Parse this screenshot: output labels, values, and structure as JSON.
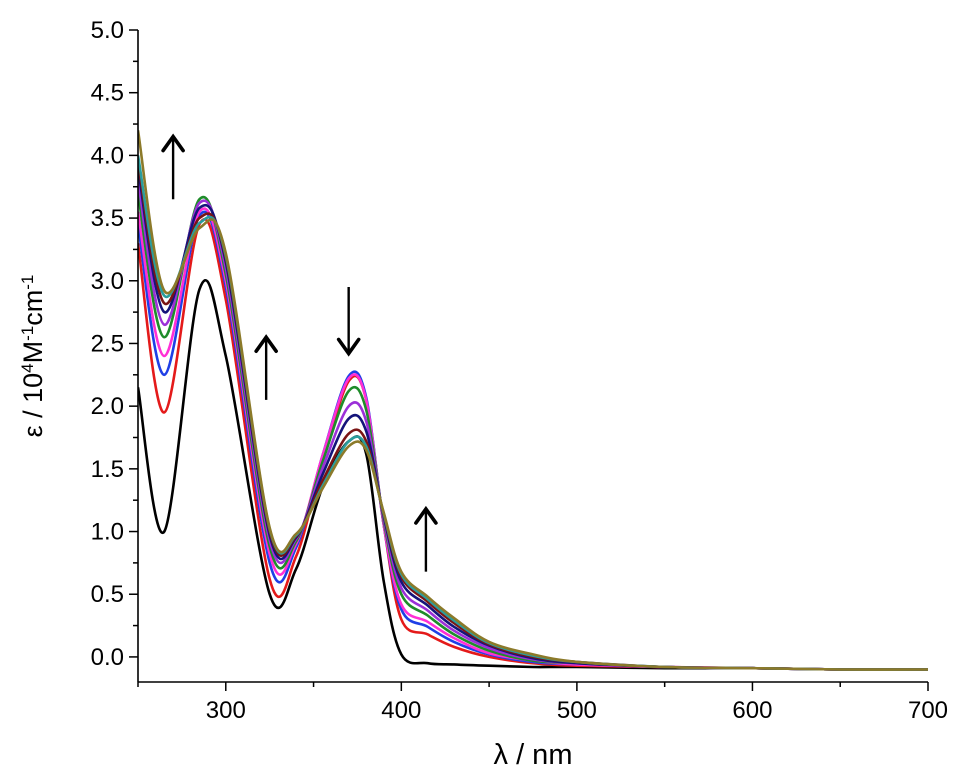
{
  "chart_data": {
    "type": "line",
    "xlabel": "λ / nm",
    "ylabel": {
      "prefix": "ε / 10",
      "sup1": "4",
      "mid": "M",
      "sup2": "-1",
      "mid2": "cm",
      "sup3": "-1"
    },
    "xlim": [
      250,
      700
    ],
    "ylim": [
      -0.2,
      5.0
    ],
    "xticks": [
      300,
      400,
      500,
      600,
      700
    ],
    "yticks": [
      0.0,
      0.5,
      1.0,
      1.5,
      2.0,
      2.5,
      3.0,
      3.5,
      4.0,
      4.5,
      5.0
    ],
    "grid": false,
    "legend": "none",
    "annotations": [
      {
        "type": "arrow",
        "direction": "up",
        "x": 270,
        "y_from": 3.65,
        "y_to": 4.15
      },
      {
        "type": "arrow",
        "direction": "up",
        "x": 323,
        "y_from": 2.05,
        "y_to": 2.55
      },
      {
        "type": "arrow",
        "direction": "down",
        "x": 370,
        "y_from": 2.95,
        "y_to": 2.42
      },
      {
        "type": "arrow",
        "direction": "up",
        "x": 414,
        "y_from": 0.68,
        "y_to": 1.18
      }
    ],
    "x": [
      250,
      265,
      285,
      300,
      325,
      340,
      355,
      370,
      380,
      390,
      400,
      415,
      430,
      450,
      475,
      500,
      550,
      600,
      650,
      700
    ],
    "series": [
      {
        "color": "#000000",
        "values": [
          2.15,
          1.0,
          2.93,
          2.4,
          0.5,
          0.7,
          1.35,
          1.72,
          1.62,
          0.6,
          0.02,
          -0.05,
          -0.06,
          -0.07,
          -0.08,
          -0.08,
          -0.09,
          -0.09,
          -0.1,
          -0.1
        ]
      },
      {
        "color": "#e41a1a",
        "values": [
          3.3,
          1.95,
          3.45,
          2.85,
          0.62,
          0.8,
          1.55,
          2.2,
          2.05,
          1.05,
          0.3,
          0.18,
          0.08,
          0.0,
          -0.05,
          -0.07,
          -0.08,
          -0.09,
          -0.1,
          -0.1
        ]
      },
      {
        "color": "#1f3fe6",
        "values": [
          3.45,
          2.25,
          3.52,
          2.95,
          0.75,
          0.87,
          1.6,
          2.24,
          2.07,
          1.05,
          0.38,
          0.24,
          0.12,
          0.02,
          -0.04,
          -0.06,
          -0.08,
          -0.09,
          -0.1,
          -0.1
        ]
      },
      {
        "color": "#ff2fd6",
        "values": [
          3.55,
          2.4,
          3.55,
          3.0,
          0.82,
          0.9,
          1.6,
          2.22,
          2.05,
          1.05,
          0.42,
          0.28,
          0.15,
          0.03,
          -0.03,
          -0.06,
          -0.08,
          -0.09,
          -0.1,
          -0.1
        ]
      },
      {
        "color": "#1f8c2a",
        "values": [
          3.7,
          2.55,
          3.65,
          3.05,
          0.88,
          0.92,
          1.55,
          2.12,
          1.97,
          1.08,
          0.5,
          0.33,
          0.18,
          0.05,
          -0.03,
          -0.05,
          -0.08,
          -0.09,
          -0.1,
          -0.1
        ]
      },
      {
        "color": "#9b30d8",
        "values": [
          3.8,
          2.65,
          3.62,
          3.1,
          0.93,
          0.94,
          1.5,
          2.0,
          1.88,
          1.1,
          0.55,
          0.37,
          0.21,
          0.07,
          -0.02,
          -0.05,
          -0.08,
          -0.09,
          -0.1,
          -0.1
        ]
      },
      {
        "color": "#14147a",
        "values": [
          3.9,
          2.75,
          3.58,
          3.15,
          0.97,
          0.95,
          1.45,
          1.9,
          1.8,
          1.12,
          0.6,
          0.41,
          0.24,
          0.09,
          -0.01,
          -0.05,
          -0.08,
          -0.09,
          -0.1,
          -0.1
        ]
      },
      {
        "color": "#7a1414",
        "values": [
          3.95,
          2.82,
          3.5,
          3.18,
          1.0,
          0.96,
          1.4,
          1.78,
          1.72,
          1.13,
          0.64,
          0.44,
          0.27,
          0.1,
          0.0,
          -0.04,
          -0.08,
          -0.09,
          -0.1,
          -0.1
        ]
      },
      {
        "color": "#2a9d9d",
        "values": [
          4.0,
          2.88,
          3.46,
          3.2,
          1.02,
          0.97,
          1.36,
          1.72,
          1.68,
          1.14,
          0.66,
          0.46,
          0.29,
          0.11,
          0.01,
          -0.04,
          -0.08,
          -0.09,
          -0.1,
          -0.1
        ]
      },
      {
        "color": "#8c7a2a",
        "values": [
          4.2,
          2.92,
          3.42,
          3.22,
          1.03,
          0.98,
          1.34,
          1.68,
          1.65,
          1.15,
          0.68,
          0.48,
          0.31,
          0.12,
          0.02,
          -0.04,
          -0.08,
          -0.09,
          -0.1,
          -0.1
        ]
      }
    ]
  }
}
